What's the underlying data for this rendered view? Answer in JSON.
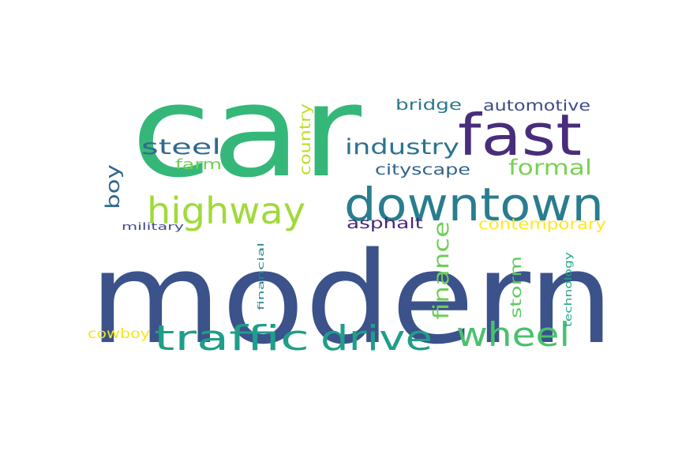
{
  "words": [
    {
      "text": "car",
      "color": "#35b779"
    },
    {
      "text": "modern",
      "color": "#3b528b"
    },
    {
      "text": "fast",
      "color": "#472d7b"
    },
    {
      "text": "downtown",
      "color": "#287d8e"
    },
    {
      "text": "highway",
      "color": "#a0da39"
    },
    {
      "text": "traffic",
      "color": "#1f9e89"
    },
    {
      "text": "drive",
      "color": "#1f9e89"
    },
    {
      "text": "wheel",
      "color": "#4ac16d"
    },
    {
      "text": "industry",
      "color": "#2c728e"
    },
    {
      "text": "steel",
      "color": "#31688e"
    },
    {
      "text": "formal",
      "color": "#7ad151"
    },
    {
      "text": "finance",
      "color": "#6ece58"
    },
    {
      "text": "boy",
      "color": "#31688e"
    },
    {
      "text": "country",
      "color": "#bddf26"
    },
    {
      "text": "bridge",
      "color": "#2a788e"
    },
    {
      "text": "automotive",
      "color": "#3e4989"
    },
    {
      "text": "cityscape",
      "color": "#33638d"
    },
    {
      "text": "farm",
      "color": "#6ece58"
    },
    {
      "text": "asphalt",
      "color": "#482878"
    },
    {
      "text": "contemporary",
      "color": "#fde725"
    },
    {
      "text": "storm",
      "color": "#5ec962"
    },
    {
      "text": "cowboy",
      "color": "#f2e51d"
    },
    {
      "text": "military",
      "color": "#3e4989"
    },
    {
      "text": "financial",
      "color": "#26828e"
    },
    {
      "text": "technology",
      "color": "#22a884"
    }
  ]
}
